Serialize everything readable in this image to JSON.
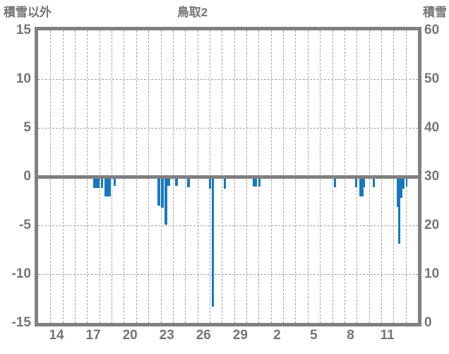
{
  "chart_data": {
    "type": "bar",
    "title": "鳥取2",
    "left_axis": {
      "label": "積雪以外",
      "min": -15,
      "max": 15,
      "ticks": [
        15,
        10,
        5,
        0,
        -5,
        -10,
        -15
      ]
    },
    "right_axis": {
      "label": "積雪",
      "min": 0,
      "max": 60,
      "ticks": [
        60,
        50,
        40,
        30,
        20,
        10,
        0
      ]
    },
    "x_axis": {
      "labels": [
        "14",
        "17",
        "20",
        "23",
        "26",
        "29",
        "2",
        "5",
        "8",
        "11"
      ],
      "label_day_slots": [
        1,
        4,
        7,
        10,
        13,
        16,
        19,
        22,
        25,
        28
      ],
      "total_days": 31,
      "gridline_every_days": 1
    },
    "grid": {
      "h_dashed_values": [
        10,
        5,
        -5,
        -10
      ],
      "zero_line_value": 0
    },
    "bars": [
      {
        "day": 4.51,
        "w": 0.5,
        "v": -1.15
      },
      {
        "day": 5.11,
        "w": 0.17,
        "v": -1.15
      },
      {
        "day": 5.44,
        "w": 0.48,
        "v": -2.05
      },
      {
        "day": 6.15,
        "w": 0.19,
        "v": -0.95
      },
      {
        "day": 9.76,
        "w": 0.23,
        "v": -3.0
      },
      {
        "day": 10.05,
        "w": 0.2,
        "v": -3.2
      },
      {
        "day": 10.32,
        "w": 0.23,
        "v": -4.95
      },
      {
        "day": 10.55,
        "w": 0.21,
        "v": -0.95
      },
      {
        "day": 11.2,
        "w": 0.2,
        "v": -0.95
      },
      {
        "day": 12.16,
        "w": 0.2,
        "v": -1.1
      },
      {
        "day": 13.95,
        "w": 0.17,
        "v": -1.2
      },
      {
        "day": 14.18,
        "w": 0.19,
        "v": -13.3
      },
      {
        "day": 15.13,
        "w": 0.2,
        "v": -1.2
      },
      {
        "day": 17.49,
        "w": 0.39,
        "v": -1.05
      },
      {
        "day": 18.0,
        "w": 0.17,
        "v": -1.05
      },
      {
        "day": 24.12,
        "w": 0.19,
        "v": -1.1
      },
      {
        "day": 25.85,
        "w": 0.19,
        "v": -1.1
      },
      {
        "day": 26.24,
        "w": 0.33,
        "v": -2.0
      },
      {
        "day": 26.57,
        "w": 0.12,
        "v": -1.1
      },
      {
        "day": 27.29,
        "w": 0.19,
        "v": -1.1
      },
      {
        "day": 29.3,
        "w": 0.08,
        "v": -3.1
      },
      {
        "day": 29.38,
        "w": 0.17,
        "v": -6.9
      },
      {
        "day": 29.55,
        "w": 0.19,
        "v": -2.2
      },
      {
        "day": 29.74,
        "w": 0.17,
        "v": -1.2
      },
      {
        "day": 30.01,
        "w": 0.15,
        "v": -1.0
      }
    ],
    "colors": {
      "bar": "#1878be",
      "frame": "#808080",
      "grid": "#a3a3a3",
      "text": "#757575"
    },
    "legend": null
  }
}
